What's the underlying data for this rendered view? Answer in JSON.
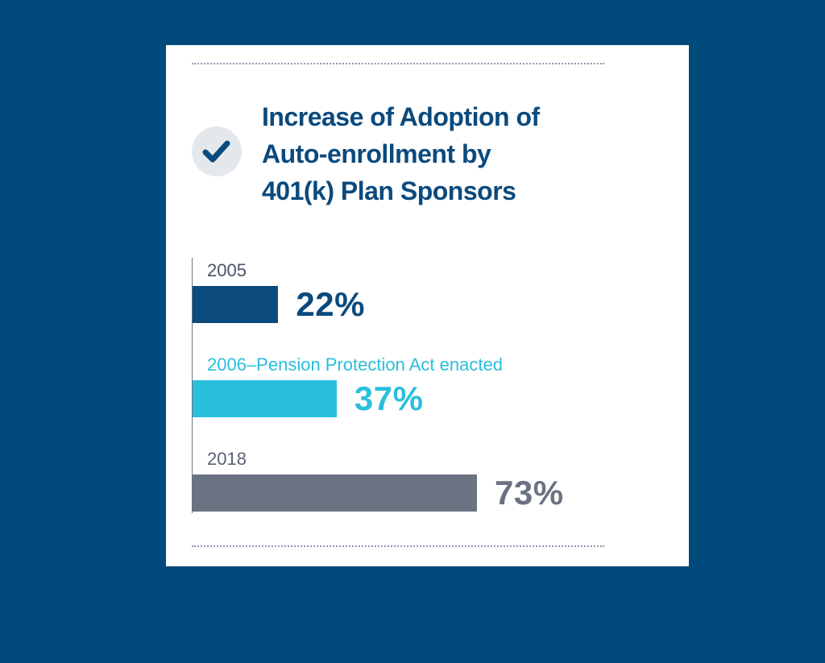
{
  "title_lines": [
    "Increase of Adoption of",
    "Auto-enrollment by",
    "401(k) Plan Sponsors"
  ],
  "icon": "checkmark-icon",
  "colors": {
    "background": "#004a7c",
    "title": "#0b4a7d",
    "series_2005": "#0b4a7d",
    "series_2006": "#2abfdc",
    "series_2018": "#6b7382"
  },
  "chart_data": {
    "type": "bar",
    "orientation": "horizontal",
    "title": "Increase of Adoption of Auto-enrollment by 401(k) Plan Sponsors",
    "categories": [
      "2005",
      "2006–Pension Protection Act enacted",
      "2018"
    ],
    "values": [
      22,
      37,
      73
    ],
    "value_labels": [
      "22%",
      "37%",
      "73%"
    ],
    "xlim": [
      0,
      100
    ],
    "xlabel": "",
    "ylabel": "",
    "grid": false,
    "legend": "none"
  }
}
